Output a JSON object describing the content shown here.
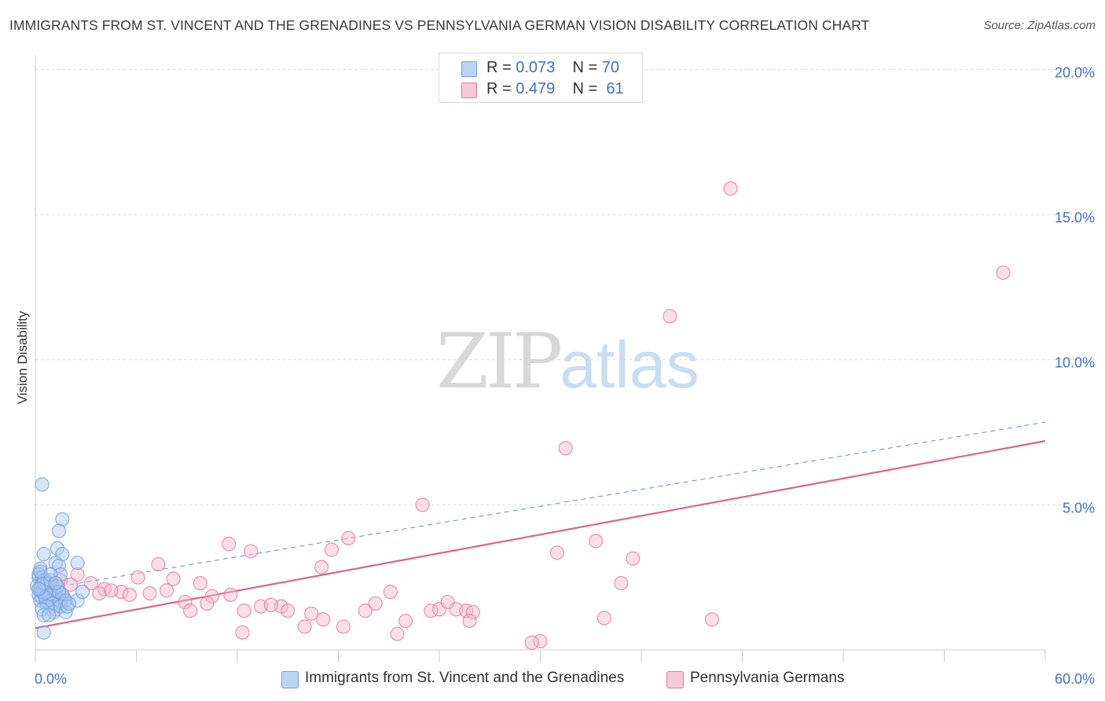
{
  "chart_data": {
    "type": "scatter",
    "title": "IMMIGRANTS FROM ST. VINCENT AND THE GRENADINES VS PENNSYLVANIA GERMAN VISION DISABILITY CORRELATION CHART",
    "source": "Source: ZipAtlas.com",
    "xlabel": "",
    "ylabel": "Vision Disability",
    "xlim": [
      0,
      60
    ],
    "ylim": [
      0,
      20.5
    ],
    "x_tick_labels": [
      "0.0%",
      "60.0%"
    ],
    "y_ticks": [
      {
        "value": 5,
        "label": "5.0%"
      },
      {
        "value": 10,
        "label": "10.0%"
      },
      {
        "value": 15,
        "label": "15.0%"
      },
      {
        "value": 20,
        "label": "20.0%"
      }
    ],
    "grid": true,
    "legend_position": "top-center",
    "watermark": {
      "zip": "ZIP",
      "atlas": "atlas"
    },
    "series": [
      {
        "name": "Immigrants from St. Vincent and the Grenadines",
        "color": "#6fa0e0",
        "fill": "#aac8f0",
        "r_label": "R =",
        "r_value": "0.073",
        "n_label": "N =",
        "n_value": "70",
        "trend": {
          "x0": 0,
          "y0": 2.05,
          "x1": 60,
          "y1": 7.85,
          "style": "dashed"
        },
        "points": [
          [
            0.1,
            2.2
          ],
          [
            0.2,
            2.5
          ],
          [
            0.3,
            2.0
          ],
          [
            0.4,
            2.3
          ],
          [
            0.2,
            1.9
          ],
          [
            0.5,
            2.1
          ],
          [
            0.3,
            2.8
          ],
          [
            0.6,
            2.4
          ],
          [
            0.4,
            1.8
          ],
          [
            0.7,
            2.2
          ],
          [
            0.2,
            2.6
          ],
          [
            0.5,
            2.0
          ],
          [
            0.8,
            2.3
          ],
          [
            0.3,
            2.1
          ],
          [
            0.6,
            1.7
          ],
          [
            0.9,
            2.0
          ],
          [
            0.4,
            2.5
          ],
          [
            0.7,
            1.9
          ],
          [
            1.0,
            2.2
          ],
          [
            0.5,
            2.4
          ],
          [
            0.8,
            1.6
          ],
          [
            1.1,
            2.0
          ],
          [
            0.6,
            2.2
          ],
          [
            0.9,
            1.8
          ],
          [
            1.2,
            1.9
          ],
          [
            0.3,
            1.7
          ],
          [
            1.0,
            1.5
          ],
          [
            1.3,
            1.8
          ],
          [
            0.7,
            2.3
          ],
          [
            1.4,
            1.6
          ],
          [
            0.4,
            2.0
          ],
          [
            1.1,
            2.1
          ],
          [
            0.8,
            1.9
          ],
          [
            1.5,
            1.7
          ],
          [
            0.5,
            2.3
          ],
          [
            1.2,
            1.4
          ],
          [
            1.6,
            1.9
          ],
          [
            0.9,
            2.4
          ],
          [
            1.3,
            2.2
          ],
          [
            0.6,
            1.8
          ],
          [
            1.0,
            1.6
          ],
          [
            1.7,
            1.8
          ],
          [
            0.2,
            2.1
          ],
          [
            1.4,
            2.0
          ],
          [
            0.7,
            1.5
          ],
          [
            1.8,
            1.7
          ],
          [
            0.4,
            1.4
          ],
          [
            1.1,
            1.3
          ],
          [
            0.3,
            2.7
          ],
          [
            1.5,
            1.5
          ],
          [
            0.4,
            5.7
          ],
          [
            1.6,
            4.5
          ],
          [
            1.4,
            4.1
          ],
          [
            0.5,
            3.3
          ],
          [
            1.3,
            3.5
          ],
          [
            1.6,
            3.3
          ],
          [
            1.2,
            3.0
          ],
          [
            2.5,
            3.0
          ],
          [
            1.4,
            2.9
          ],
          [
            1.5,
            2.6
          ],
          [
            0.5,
            1.2
          ],
          [
            0.8,
            1.2
          ],
          [
            0.5,
            0.6
          ],
          [
            1.8,
            1.3
          ],
          [
            1.9,
            1.5
          ],
          [
            2.5,
            1.7
          ],
          [
            2.8,
            2.0
          ],
          [
            0.9,
            2.6
          ],
          [
            1.2,
            2.3
          ],
          [
            2.0,
            1.6
          ]
        ]
      },
      {
        "name": "Pennsylvania Germans",
        "color": "#e8799b",
        "fill": "#f5b8cb",
        "r_label": "R =",
        "r_value": "0.479",
        "n_label": "N =",
        "n_value": "61",
        "trend": {
          "x0": 0,
          "y0": 0.75,
          "x1": 60,
          "y1": 7.2,
          "style": "solid"
        },
        "points": [
          [
            41.3,
            15.9
          ],
          [
            57.5,
            13.0
          ],
          [
            37.7,
            11.5
          ],
          [
            31.5,
            6.95
          ],
          [
            23.0,
            5.0
          ],
          [
            33.3,
            3.75
          ],
          [
            31.0,
            3.35
          ],
          [
            35.5,
            3.15
          ],
          [
            18.6,
            3.85
          ],
          [
            11.5,
            3.65
          ],
          [
            17.6,
            3.45
          ],
          [
            12.8,
            3.4
          ],
          [
            7.3,
            2.95
          ],
          [
            17.0,
            2.85
          ],
          [
            6.1,
            2.5
          ],
          [
            8.2,
            2.45
          ],
          [
            9.8,
            2.3
          ],
          [
            34.8,
            2.3
          ],
          [
            1.5,
            2.4
          ],
          [
            2.1,
            2.25
          ],
          [
            3.3,
            2.3
          ],
          [
            4.1,
            2.1
          ],
          [
            3.8,
            1.95
          ],
          [
            5.1,
            2.0
          ],
          [
            5.6,
            1.9
          ],
          [
            6.8,
            1.95
          ],
          [
            7.8,
            2.05
          ],
          [
            10.5,
            1.85
          ],
          [
            11.6,
            1.9
          ],
          [
            13.4,
            1.5
          ],
          [
            14.6,
            1.5
          ],
          [
            8.9,
            1.65
          ],
          [
            9.2,
            1.35
          ],
          [
            10.2,
            1.6
          ],
          [
            12.4,
            1.35
          ],
          [
            14.0,
            1.55
          ],
          [
            15.0,
            1.35
          ],
          [
            16.4,
            1.25
          ],
          [
            17.1,
            1.05
          ],
          [
            19.6,
            1.35
          ],
          [
            20.2,
            1.6
          ],
          [
            21.1,
            2.0
          ],
          [
            23.5,
            1.35
          ],
          [
            24.0,
            1.4
          ],
          [
            24.5,
            1.65
          ],
          [
            25.0,
            1.4
          ],
          [
            25.6,
            1.35
          ],
          [
            26.0,
            1.3
          ],
          [
            22.0,
            1.0
          ],
          [
            25.8,
            1.0
          ],
          [
            33.8,
            1.1
          ],
          [
            40.2,
            1.05
          ],
          [
            12.3,
            0.6
          ],
          [
            18.3,
            0.8
          ],
          [
            16.0,
            0.8
          ],
          [
            21.5,
            0.55
          ],
          [
            30.0,
            0.3
          ],
          [
            29.5,
            0.25
          ],
          [
            2.5,
            2.6
          ],
          [
            4.5,
            2.05
          ],
          [
            1.0,
            2.1
          ]
        ]
      }
    ]
  }
}
